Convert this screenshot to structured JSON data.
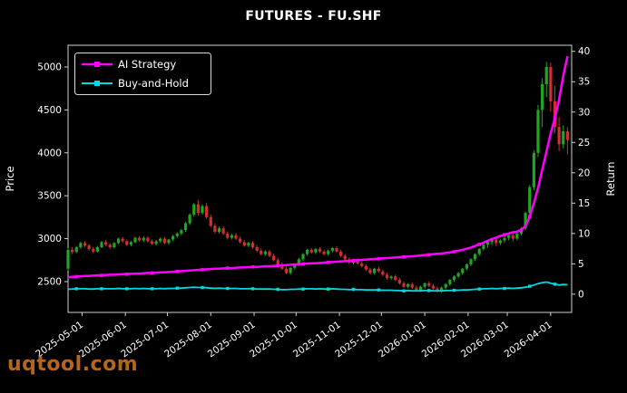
{
  "watermark": {
    "text": "uqtool.com",
    "color": "#b5651d"
  },
  "chart_data": {
    "type": "candlestick+line",
    "title": "FUTURES - FU.SHF",
    "ylabel_left": "Price",
    "ylabel_right": "Return",
    "grid": false,
    "background": "#000000",
    "x_start": "2025-04-21",
    "x_end": "2026-04-16",
    "candle_step_days": 3,
    "price_axis": {
      "ticks": [
        2500,
        3000,
        3500,
        4000,
        4500,
        5000
      ],
      "range": [
        2141,
        5253
      ]
    },
    "return_axis": {
      "ticks": [
        0,
        5,
        10,
        15,
        20,
        25,
        30,
        35,
        40
      ],
      "range": [
        -3,
        41
      ]
    },
    "x_ticks": [
      "2025-05-01",
      "2025-06-01",
      "2025-07-01",
      "2025-08-01",
      "2025-09-01",
      "2025-10-01",
      "2025-11-01",
      "2025-12-01",
      "2026-01-01",
      "2026-02-01",
      "2026-03-01",
      "2026-04-01"
    ],
    "legend": {
      "position": "upper left"
    },
    "colors": {
      "up": "#1fa71f",
      "down": "#d12f2f",
      "ai": "#ff00ff",
      "bh": "#00d9e0",
      "text": "#ffffff",
      "spine": "#cfcfcf"
    },
    "candles": [
      [
        2650,
        2890,
        2630,
        2870
      ],
      [
        2870,
        2900,
        2820,
        2845
      ],
      [
        2845,
        2915,
        2830,
        2900
      ],
      [
        2900,
        2965,
        2880,
        2950
      ],
      [
        2950,
        2975,
        2900,
        2920
      ],
      [
        2920,
        2940,
        2860,
        2880
      ],
      [
        2880,
        2905,
        2830,
        2850
      ],
      [
        2850,
        2915,
        2840,
        2900
      ],
      [
        2900,
        2975,
        2890,
        2960
      ],
      [
        2960,
        2985,
        2910,
        2930
      ],
      [
        2930,
        2950,
        2880,
        2900
      ],
      [
        2900,
        2960,
        2885,
        2950
      ],
      [
        2950,
        3010,
        2935,
        3000
      ],
      [
        3000,
        3020,
        2950,
        2970
      ],
      [
        2970,
        2990,
        2915,
        2930
      ],
      [
        2930,
        2975,
        2910,
        2960
      ],
      [
        2960,
        3025,
        2945,
        3010
      ],
      [
        3010,
        3030,
        2965,
        2980
      ],
      [
        2980,
        3025,
        2960,
        3010
      ],
      [
        3010,
        3030,
        2955,
        2970
      ],
      [
        2970,
        2990,
        2925,
        2940
      ],
      [
        2940,
        2985,
        2920,
        2970
      ],
      [
        2970,
        3015,
        2950,
        3000
      ],
      [
        3000,
        3020,
        2935,
        2950
      ],
      [
        2950,
        3000,
        2930,
        2990
      ],
      [
        2990,
        3045,
        2970,
        3030
      ],
      [
        3030,
        3075,
        3010,
        3060
      ],
      [
        3060,
        3115,
        3040,
        3100
      ],
      [
        3100,
        3195,
        3080,
        3180
      ],
      [
        3180,
        3295,
        3160,
        3280
      ],
      [
        3280,
        3415,
        3255,
        3400
      ],
      [
        3400,
        3450,
        3270,
        3300
      ],
      [
        3300,
        3400,
        3280,
        3380
      ],
      [
        3380,
        3420,
        3230,
        3250
      ],
      [
        3250,
        3280,
        3130,
        3150
      ],
      [
        3150,
        3175,
        3060,
        3080
      ],
      [
        3080,
        3140,
        3060,
        3120
      ],
      [
        3120,
        3145,
        3040,
        3060
      ],
      [
        3060,
        3085,
        2990,
        3010
      ],
      [
        3010,
        3060,
        2990,
        3040
      ],
      [
        3040,
        3065,
        2985,
        3000
      ],
      [
        3000,
        3025,
        2945,
        2960
      ],
      [
        2960,
        2985,
        2905,
        2920
      ],
      [
        2920,
        2965,
        2900,
        2950
      ],
      [
        2950,
        2970,
        2885,
        2900
      ],
      [
        2900,
        2925,
        2845,
        2860
      ],
      [
        2860,
        2885,
        2805,
        2820
      ],
      [
        2820,
        2865,
        2800,
        2850
      ],
      [
        2850,
        2870,
        2785,
        2800
      ],
      [
        2800,
        2825,
        2735,
        2750
      ],
      [
        2750,
        2775,
        2685,
        2700
      ],
      [
        2700,
        2725,
        2635,
        2650
      ],
      [
        2650,
        2675,
        2585,
        2600
      ],
      [
        2600,
        2672,
        2580,
        2660
      ],
      [
        2660,
        2712,
        2640,
        2700
      ],
      [
        2700,
        2775,
        2680,
        2760
      ],
      [
        2760,
        2832,
        2740,
        2820
      ],
      [
        2820,
        2882,
        2800,
        2870
      ],
      [
        2870,
        2890,
        2825,
        2840
      ],
      [
        2840,
        2892,
        2820,
        2880
      ],
      [
        2880,
        2900,
        2835,
        2850
      ],
      [
        2850,
        2872,
        2805,
        2820
      ],
      [
        2820,
        2872,
        2800,
        2860
      ],
      [
        2860,
        2902,
        2840,
        2890
      ],
      [
        2890,
        2910,
        2835,
        2850
      ],
      [
        2850,
        2872,
        2785,
        2800
      ],
      [
        2800,
        2822,
        2745,
        2760
      ],
      [
        2760,
        2782,
        2705,
        2720
      ],
      [
        2720,
        2762,
        2700,
        2750
      ],
      [
        2750,
        2772,
        2695,
        2710
      ],
      [
        2710,
        2732,
        2665,
        2680
      ],
      [
        2680,
        2702,
        2625,
        2640
      ],
      [
        2640,
        2662,
        2585,
        2600
      ],
      [
        2600,
        2662,
        2580,
        2650
      ],
      [
        2650,
        2672,
        2605,
        2620
      ],
      [
        2620,
        2642,
        2565,
        2580
      ],
      [
        2580,
        2602,
        2525,
        2540
      ],
      [
        2540,
        2572,
        2520,
        2560
      ],
      [
        2560,
        2582,
        2505,
        2520
      ],
      [
        2520,
        2542,
        2465,
        2480
      ],
      [
        2480,
        2502,
        2425,
        2440
      ],
      [
        2440,
        2482,
        2420,
        2470
      ],
      [
        2470,
        2492,
        2415,
        2430
      ],
      [
        2430,
        2452,
        2385,
        2400
      ],
      [
        2400,
        2452,
        2380,
        2440
      ],
      [
        2440,
        2492,
        2420,
        2480
      ],
      [
        2480,
        2502,
        2435,
        2450
      ],
      [
        2450,
        2472,
        2405,
        2420
      ],
      [
        2420,
        2442,
        2372,
        2390
      ],
      [
        2390,
        2442,
        2370,
        2430
      ],
      [
        2430,
        2482,
        2410,
        2470
      ],
      [
        2470,
        2532,
        2450,
        2520
      ],
      [
        2520,
        2572,
        2500,
        2560
      ],
      [
        2560,
        2612,
        2540,
        2600
      ],
      [
        2600,
        2662,
        2580,
        2650
      ],
      [
        2650,
        2712,
        2630,
        2700
      ],
      [
        2700,
        2772,
        2680,
        2760
      ],
      [
        2760,
        2832,
        2740,
        2820
      ],
      [
        2820,
        2892,
        2800,
        2880
      ],
      [
        2880,
        2942,
        2860,
        2930
      ],
      [
        2930,
        2972,
        2895,
        2960
      ],
      [
        2960,
        3002,
        2925,
        2990
      ],
      [
        2990,
        3012,
        2915,
        2950
      ],
      [
        2950,
        2992,
        2925,
        2980
      ],
      [
        2980,
        3022,
        2950,
        3010
      ],
      [
        3010,
        3052,
        2980,
        3040
      ],
      [
        3040,
        3062,
        2965,
        3000
      ],
      [
        3000,
        3072,
        2980,
        3060
      ],
      [
        3060,
        3135,
        3040,
        3120
      ],
      [
        3120,
        3315,
        3100,
        3300
      ],
      [
        3300,
        3625,
        3280,
        3600
      ],
      [
        3600,
        4030,
        3560,
        4000
      ],
      [
        4000,
        4560,
        3950,
        4500
      ],
      [
        4500,
        4870,
        4300,
        4800
      ],
      [
        4800,
        5060,
        4650,
        5000
      ],
      [
        5000,
        5050,
        4480,
        4600
      ],
      [
        4600,
        4780,
        4230,
        4300
      ],
      [
        4300,
        4420,
        4020,
        4100
      ],
      [
        4100,
        4320,
        4050,
        4250
      ],
      [
        4250,
        4300,
        3980,
        4150
      ]
    ],
    "series": [
      {
        "name": "AI Strategy",
        "axis": "return",
        "color": "#ff00ff",
        "values": [
          2.8,
          2.85,
          2.9,
          2.95,
          3.0,
          3.0,
          3.05,
          3.1,
          3.1,
          3.15,
          3.2,
          3.2,
          3.25,
          3.3,
          3.3,
          3.35,
          3.4,
          3.4,
          3.45,
          3.5,
          3.5,
          3.55,
          3.6,
          3.6,
          3.65,
          3.7,
          3.75,
          3.8,
          3.85,
          3.9,
          3.95,
          4.0,
          4.05,
          4.1,
          4.15,
          4.2,
          4.2,
          4.25,
          4.3,
          4.3,
          4.35,
          4.4,
          4.4,
          4.45,
          4.5,
          4.5,
          4.55,
          4.6,
          4.6,
          4.65,
          4.7,
          4.75,
          4.8,
          4.85,
          4.9,
          4.95,
          5.0,
          5.05,
          5.1,
          5.1,
          5.15,
          5.2,
          5.25,
          5.3,
          5.35,
          5.4,
          5.45,
          5.5,
          5.55,
          5.6,
          5.65,
          5.7,
          5.75,
          5.8,
          5.85,
          5.9,
          5.95,
          6.0,
          6.05,
          6.1,
          6.15,
          6.2,
          6.25,
          6.3,
          6.4,
          6.45,
          6.5,
          6.6,
          6.65,
          6.7,
          6.8,
          6.9,
          7.0,
          7.15,
          7.3,
          7.5,
          7.7,
          7.95,
          8.2,
          8.5,
          8.8,
          9.1,
          9.3,
          9.6,
          9.8,
          10.0,
          10.2,
          10.3,
          10.6,
          11.2,
          12.8,
          15.0,
          17.5,
          20.5,
          23.5,
          26.5,
          29.0,
          32.0,
          36.0,
          39.2
        ]
      },
      {
        "name": "Buy-and-Hold",
        "axis": "return",
        "color": "#00d9e0",
        "values": [
          0.8,
          0.85,
          0.9,
          0.9,
          0.9,
          0.85,
          0.85,
          0.9,
          0.9,
          0.9,
          0.9,
          0.9,
          0.95,
          0.9,
          0.9,
          0.9,
          0.95,
          0.9,
          0.95,
          0.9,
          0.9,
          0.9,
          0.95,
          0.9,
          0.95,
          0.95,
          1.0,
          1.0,
          1.05,
          1.1,
          1.15,
          1.1,
          1.1,
          1.05,
          1.0,
          0.95,
          1.0,
          0.95,
          0.95,
          0.95,
          0.95,
          0.9,
          0.9,
          0.9,
          0.9,
          0.85,
          0.85,
          0.85,
          0.85,
          0.8,
          0.8,
          0.75,
          0.75,
          0.8,
          0.8,
          0.85,
          0.85,
          0.9,
          0.9,
          0.85,
          0.9,
          0.85,
          0.85,
          0.9,
          0.85,
          0.8,
          0.8,
          0.75,
          0.8,
          0.75,
          0.75,
          0.7,
          0.7,
          0.7,
          0.7,
          0.65,
          0.65,
          0.65,
          0.6,
          0.6,
          0.55,
          0.6,
          0.55,
          0.55,
          0.55,
          0.6,
          0.6,
          0.55,
          0.55,
          0.55,
          0.6,
          0.6,
          0.65,
          0.65,
          0.7,
          0.7,
          0.75,
          0.8,
          0.85,
          0.9,
          0.9,
          0.95,
          0.9,
          0.95,
          0.95,
          1.0,
          0.95,
          1.0,
          1.05,
          1.15,
          1.3,
          1.5,
          1.75,
          1.9,
          2.0,
          1.8,
          1.65,
          1.5,
          1.6,
          1.55
        ]
      }
    ]
  }
}
